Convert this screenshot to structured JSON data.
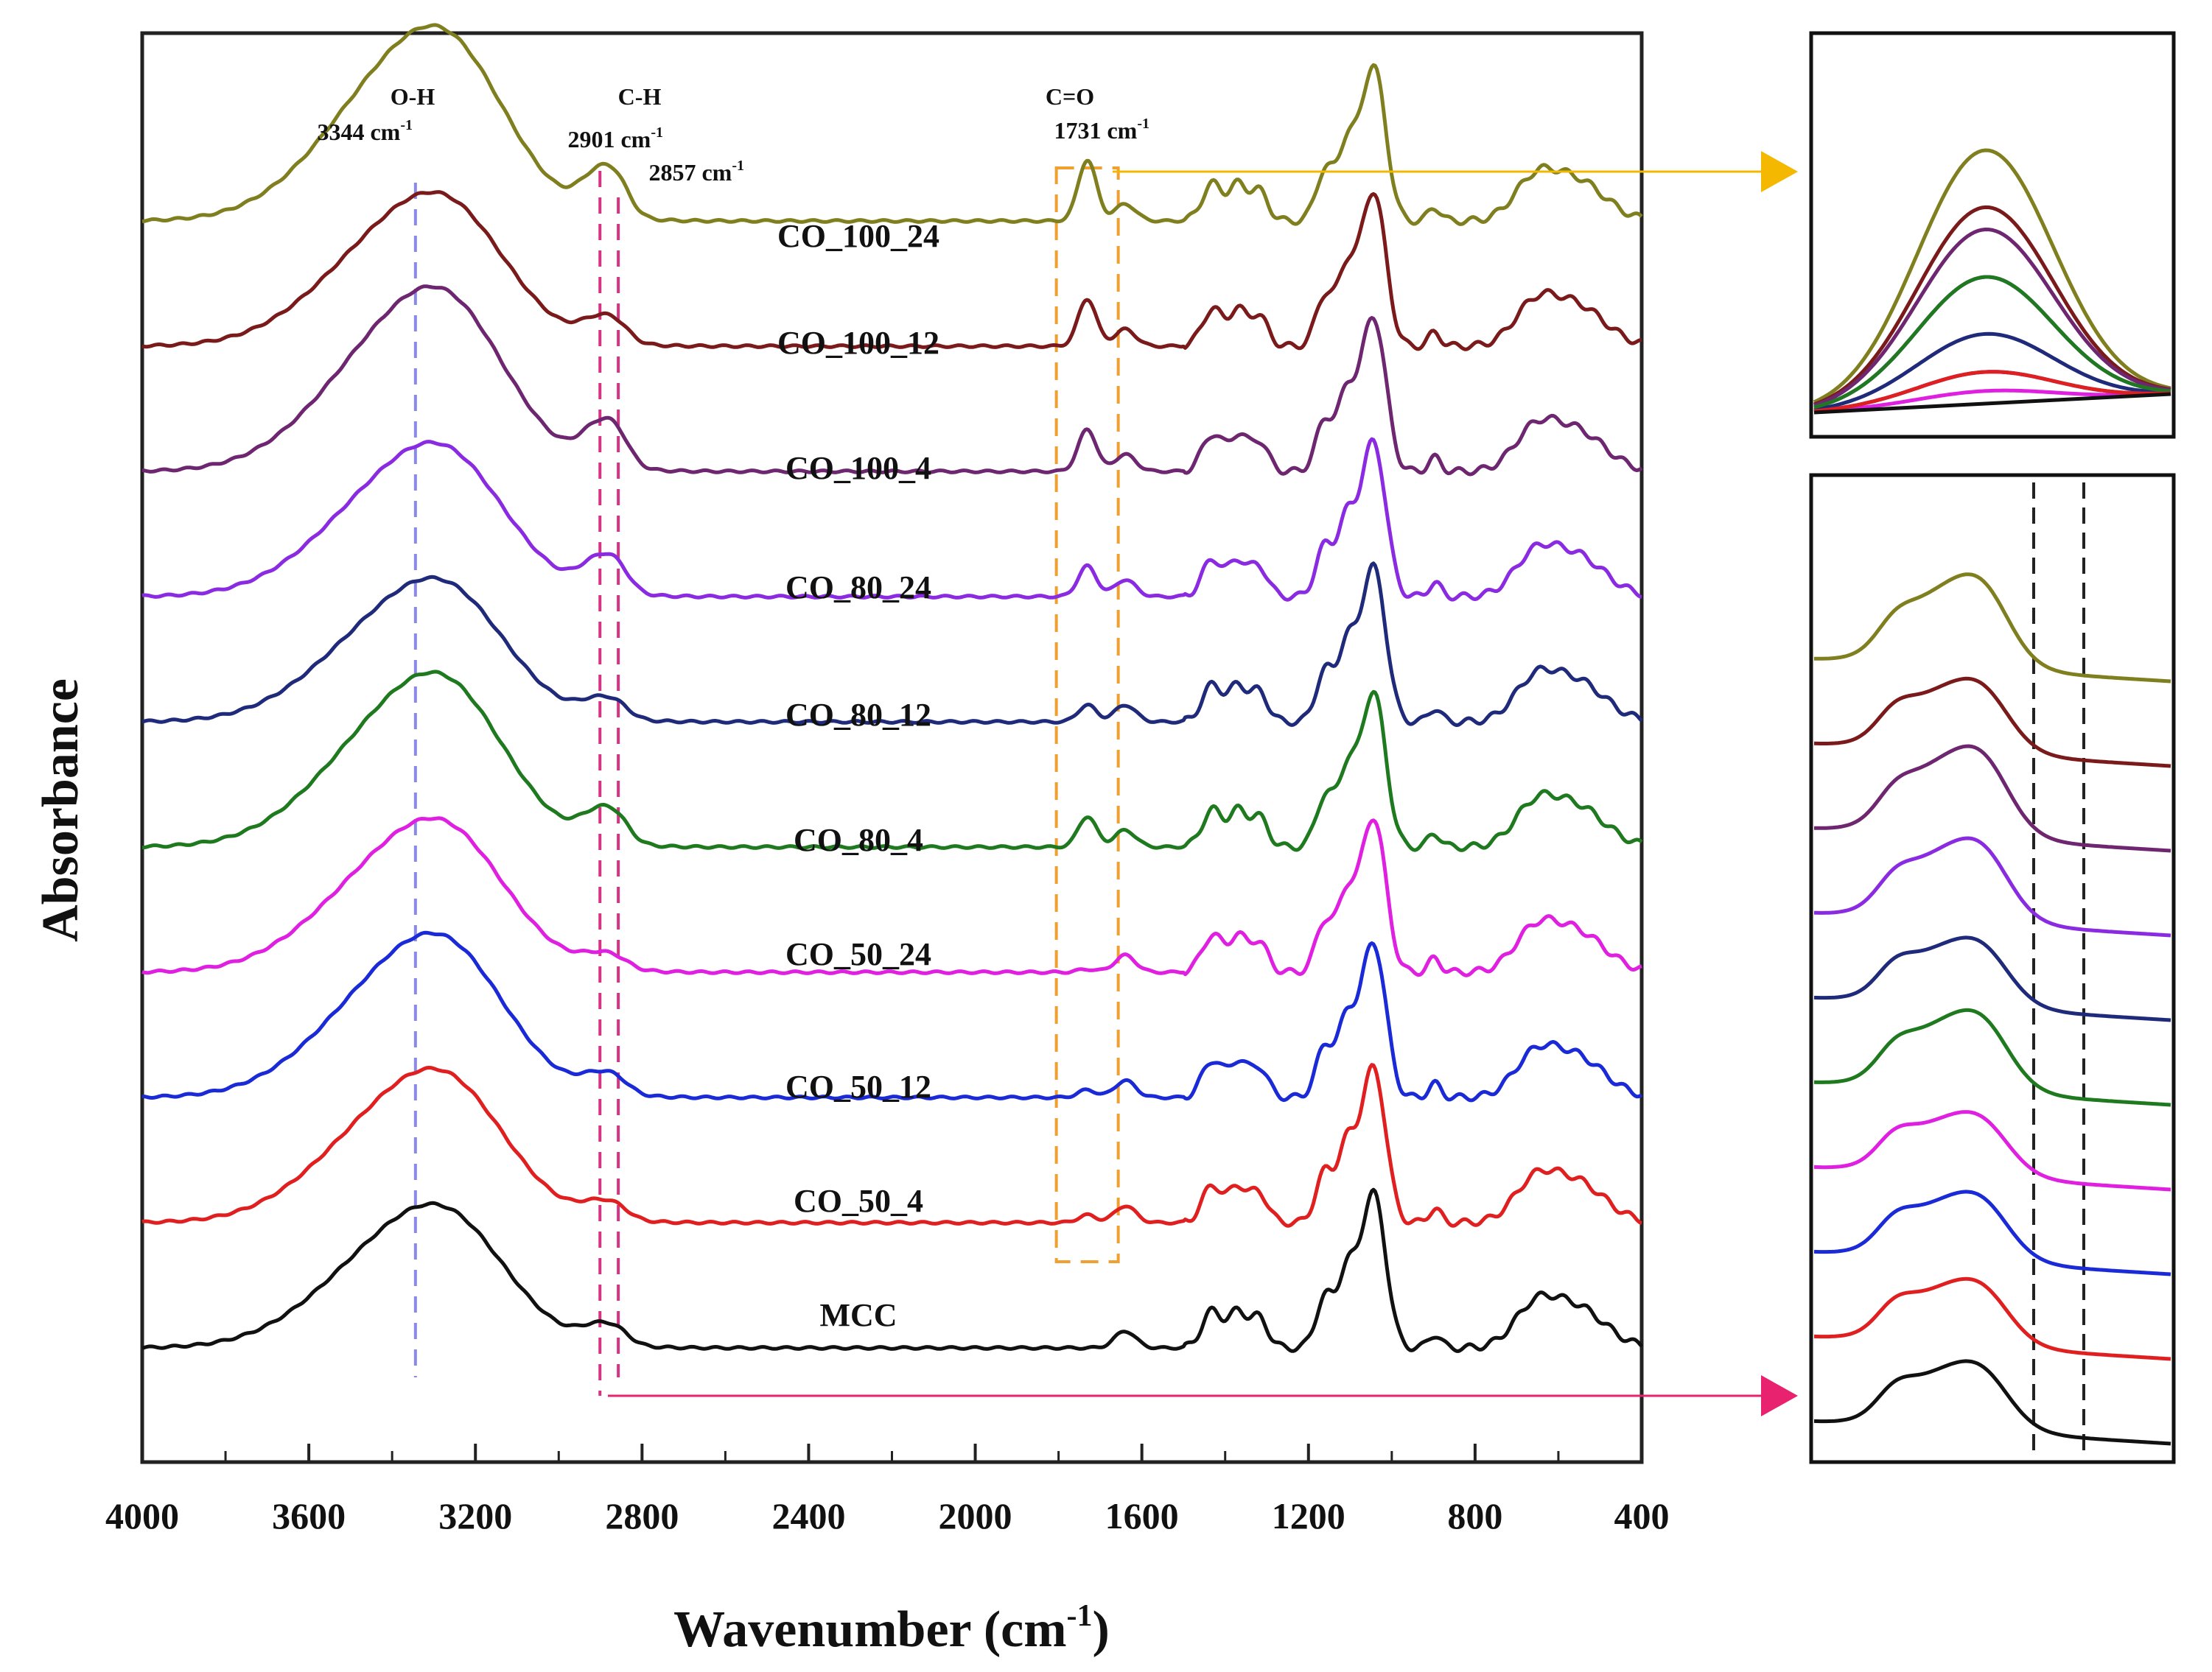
{
  "chart_data": {
    "type": "line",
    "title": "",
    "xlabel": "Wavenumber (cm",
    "xlabel_sup": "-1",
    "xlabel_close": ")",
    "ylabel": "Absorbance",
    "xlim": [
      4000,
      400
    ],
    "x_reversed": true,
    "y_units": "arbitrary (stacked with vertical offsets)",
    "xticks": [
      "4000",
      "3600",
      "3200",
      "2800",
      "2400",
      "2000",
      "1600",
      "1200",
      "800",
      "400"
    ],
    "peaks": [
      {
        "name": "O-H",
        "value": "3344 cm",
        "sup": "-1",
        "wavenumber": 3344,
        "color": "#8a8ae6"
      },
      {
        "name": "C-H",
        "value": "2901 cm",
        "sup": "-1",
        "wavenumber": 2901,
        "color": "#d63384"
      },
      {
        "name": "",
        "value": "2857 cm",
        "sup": "-1",
        "wavenumber": 2857,
        "color": "#d63384"
      },
      {
        "name": "C=O",
        "value": "1731 cm",
        "sup": "-1",
        "wavenumber": 1731,
        "color": "#f0a030"
      }
    ],
    "series": [
      {
        "name": "CO_100_24",
        "color": "#7f7f1f",
        "baseline": 9,
        "oh": 0.95,
        "ch": 0.85,
        "co": 0.8
      },
      {
        "name": "CO_100_12",
        "color": "#7a1a1a",
        "baseline": 8,
        "oh": 0.75,
        "ch": 0.45,
        "co": 0.62
      },
      {
        "name": "CO_100_4",
        "color": "#6e2670",
        "baseline": 7,
        "oh": 0.9,
        "ch": 0.8,
        "co": 0.55
      },
      {
        "name": "CO_80_24",
        "color": "#8a2be2",
        "baseline": 6,
        "oh": 0.75,
        "ch": 0.65,
        "co": 0.4
      },
      {
        "name": "CO_80_12",
        "color": "#1f2a7a",
        "baseline": 5,
        "oh": 0.7,
        "ch": 0.35,
        "co": 0.22
      },
      {
        "name": "CO_80_4",
        "color": "#1f7a1f",
        "baseline": 4,
        "oh": 0.85,
        "ch": 0.6,
        "co": 0.4
      },
      {
        "name": "CO_50_24",
        "color": "#e020e0",
        "baseline": 3,
        "oh": 0.75,
        "ch": 0.25,
        "co": 0.04
      },
      {
        "name": "CO_50_12",
        "color": "#1a2ad6",
        "baseline": 2,
        "oh": 0.8,
        "ch": 0.35,
        "co": 0.1
      },
      {
        "name": "CO_50_4",
        "color": "#e02020",
        "baseline": 1,
        "oh": 0.75,
        "ch": 0.3,
        "co": 0.1
      },
      {
        "name": "MCC",
        "color": "#111111",
        "baseline": 0,
        "oh": 0.7,
        "ch": 0.35,
        "co": 0.0
      }
    ],
    "insets": [
      {
        "name": "C=O region zoom (1731 cm-1)",
        "source_peak": "1731 cm",
        "arrow_color": "#f5b800"
      },
      {
        "name": "C-H region zoom (2901 / 2857 cm-1)",
        "source_peak": "2901 cm",
        "arrow_color": "#e8226e"
      }
    ]
  }
}
